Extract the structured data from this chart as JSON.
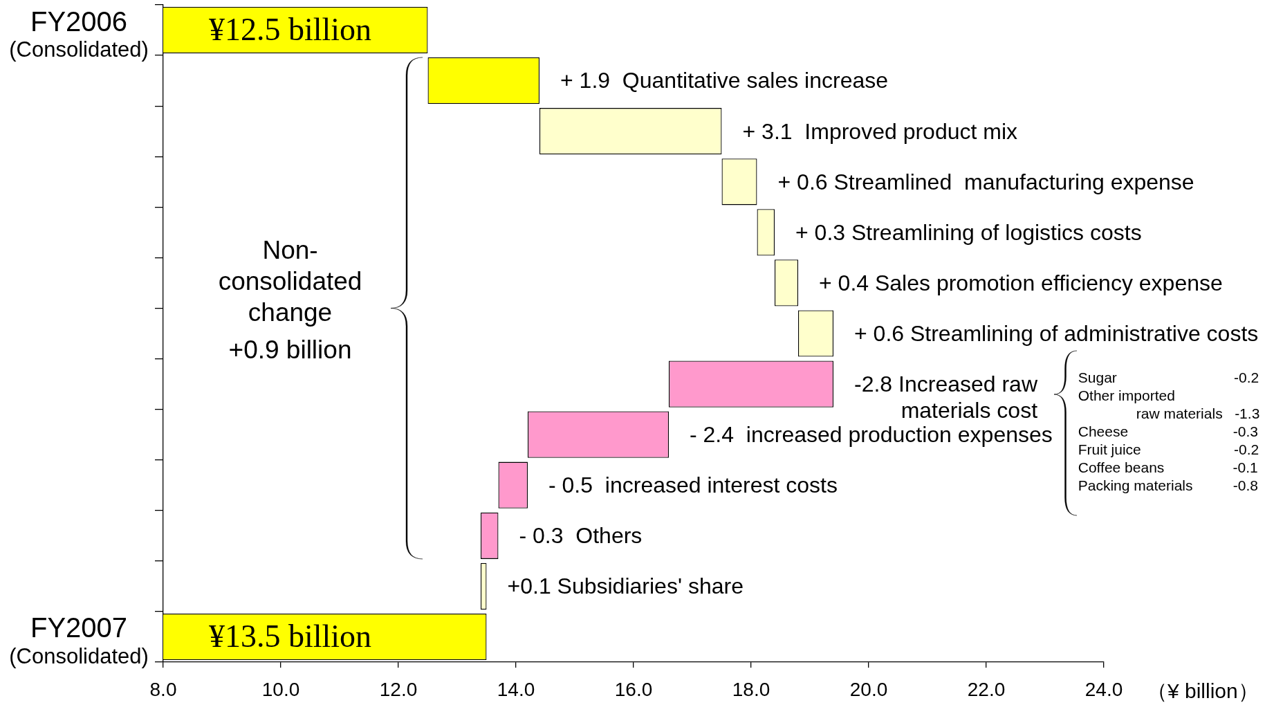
{
  "chart_data": {
    "type": "bar",
    "orientation": "horizontal",
    "categories": [
      "FY2006\n(Consolidated)",
      null,
      null,
      null,
      null,
      null,
      null,
      null,
      null,
      null,
      null,
      null,
      "FY2007\n(Consolidated)"
    ],
    "values": [
      12.5,
      1.9,
      3.1,
      0.6,
      0.3,
      0.4,
      0.6,
      -2.8,
      -2.4,
      -0.5,
      -0.3,
      0.1,
      13.5
    ],
    "base": [
      null,
      12.5,
      14.4,
      17.5,
      18.1,
      18.4,
      18.8,
      19.4,
      16.6,
      14.2,
      13.7,
      13.4,
      null
    ],
    "colors": [
      "#ffff00",
      "#ffff00",
      "#ffffcc",
      "#ffffcc",
      "#ffffcc",
      "#ffffcc",
      "#ffffcc",
      "#ff99cc",
      "#ff99cc",
      "#ff99cc",
      "#ff99cc",
      "#ffffcc",
      "#ffff00"
    ],
    "value_labels": [
      "¥12.5 billion",
      "+ 1.9  Quantitative sales increase",
      "+ 3.1  Improved product mix",
      "+ 0.6 Streamlined  manufacturing expense",
      "+ 0.3 Streamlining of logistics costs",
      "+ 0.4 Sales promotion efficiency expense",
      "+ 0.6 Streamlining of administrative costs",
      "-2.8 Increased raw\nmaterials cost",
      "- 2.4  increased production expenses",
      "- 0.5  increased interest costs",
      "- 0.3  Others",
      "+0.1 Subsidiaries' share",
      "¥13.5 billion"
    ],
    "xlabel": "（¥ billion）",
    "xlim": [
      8,
      24
    ],
    "xticks": [
      {
        "value": 8,
        "label": "8.0"
      },
      {
        "value": 10,
        "label": "10.0"
      },
      {
        "value": 12,
        "label": "12.0"
      },
      {
        "value": 14,
        "label": "14.0"
      },
      {
        "value": 16,
        "label": "16.0"
      },
      {
        "value": 18,
        "label": "18.0"
      },
      {
        "value": 20,
        "label": "20.0"
      },
      {
        "value": 22,
        "label": "22.0"
      },
      {
        "value": 24,
        "label": "24.0"
      }
    ],
    "annotations": [
      "Non-consolidated change",
      "+0.9 billion",
      "Sugar -0.2",
      "Other imported\nraw materials -1.3",
      "Cheese -0.3",
      "Fruit juice -0.2",
      "Coffee beans -0.1",
      "Packing materials -0.8"
    ]
  }
}
